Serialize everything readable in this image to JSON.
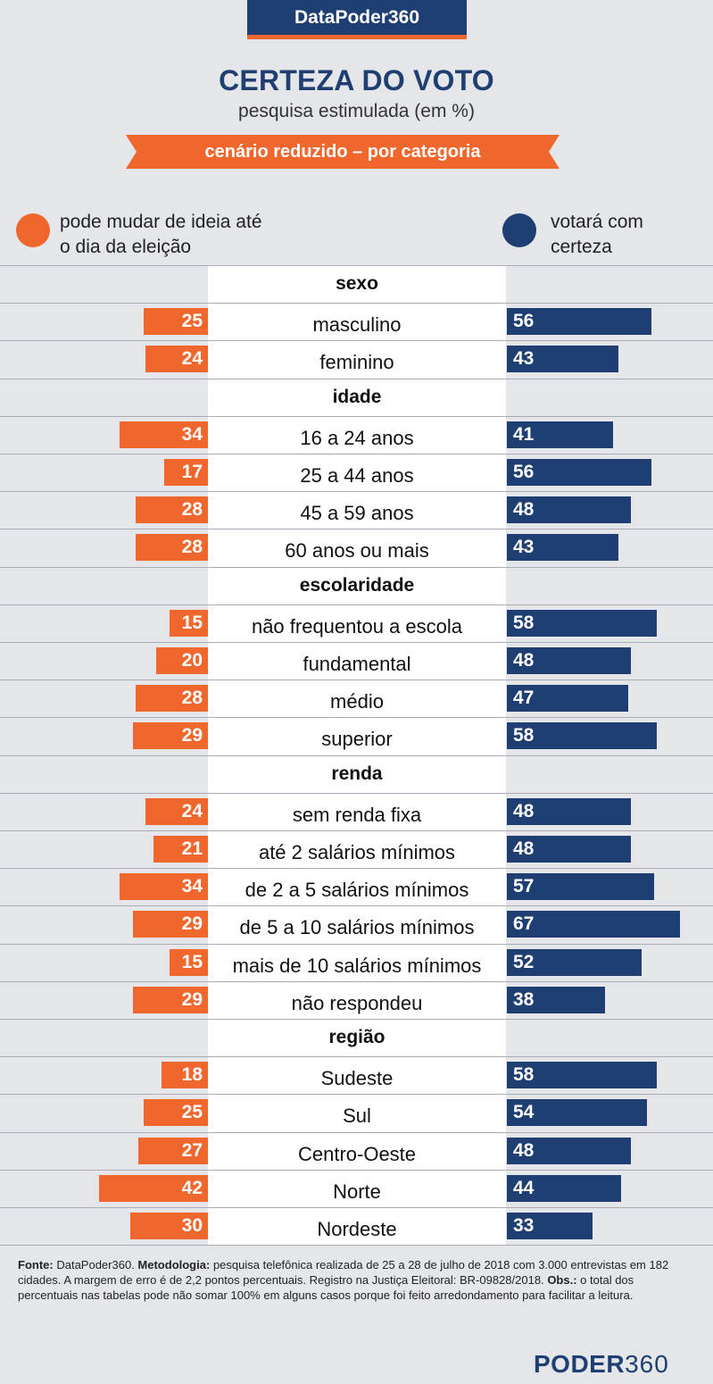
{
  "brand": "DataPoder360",
  "title": "CERTEZA DO VOTO",
  "subtitle": "pesquisa estimulada (em %)",
  "ribbon": "cenário reduzido – por categoria",
  "legend": {
    "left": "pode mudar de ideia até o dia da eleição",
    "right": "votará com certeza",
    "left_color": "#f0672e",
    "right_color": "#1f3f73"
  },
  "chart_data": {
    "type": "bar",
    "series": [
      {
        "name": "pode mudar de ideia até o dia da eleição",
        "color": "#f0672e"
      },
      {
        "name": "votará com certeza",
        "color": "#1f3f73"
      }
    ],
    "groups": [
      {
        "name": "sexo",
        "rows": [
          {
            "label": "masculino",
            "left": 25,
            "right": 56
          },
          {
            "label": "feminino",
            "left": 24,
            "right": 43
          }
        ]
      },
      {
        "name": "idade",
        "rows": [
          {
            "label": "16 a 24 anos",
            "left": 34,
            "right": 41
          },
          {
            "label": "25 a 44 anos",
            "left": 17,
            "right": 56
          },
          {
            "label": "45 a 59 anos",
            "left": 28,
            "right": 48
          },
          {
            "label": "60 anos ou mais",
            "left": 28,
            "right": 43
          }
        ]
      },
      {
        "name": "escolaridade",
        "rows": [
          {
            "label": "não frequentou a escola",
            "left": 15,
            "right": 58
          },
          {
            "label": "fundamental",
            "left": 20,
            "right": 48
          },
          {
            "label": "médio",
            "left": 28,
            "right": 47
          },
          {
            "label": "superior",
            "left": 29,
            "right": 58
          }
        ]
      },
      {
        "name": "renda",
        "rows": [
          {
            "label": "sem renda fixa",
            "left": 24,
            "right": 48
          },
          {
            "label": "até 2 salários mínimos",
            "left": 21,
            "right": 48
          },
          {
            "label": "de 2 a 5 salários mínimos",
            "left": 34,
            "right": 57
          },
          {
            "label": "de 5 a 10 salários mínimos",
            "left": 29,
            "right": 67
          },
          {
            "label": "mais de 10 salários mínimos",
            "left": 15,
            "right": 52
          },
          {
            "label": "não respondeu",
            "left": 29,
            "right": 38
          }
        ]
      },
      {
        "name": "região",
        "rows": [
          {
            "label": "Sudeste",
            "left": 18,
            "right": 58
          },
          {
            "label": "Sul",
            "left": 25,
            "right": 54
          },
          {
            "label": "Centro-Oeste",
            "left": 27,
            "right": 48
          },
          {
            "label": "Norte",
            "left": 42,
            "right": 44
          },
          {
            "label": "Nordeste",
            "left": 30,
            "right": 33
          }
        ]
      }
    ]
  },
  "footnote": {
    "source_label": "Fonte:",
    "source_text": "DataPoder360.",
    "method_label": "Metodologia:",
    "method_text": "pesquisa telefônica realizada de 25 a 28 de julho de 2018 com 3.000 entrevistas em 182 cidades. A margem de erro é de 2,2 pontos percentuais. Registro na Justiça Eleitoral: BR-09828/2018.",
    "obs_label": "Obs.:",
    "obs_text": "o total dos percentuais nas tabelas pode não somar 100% em alguns casos porque foi feito arredondamento para facilitar a leitura."
  },
  "logo": {
    "word": "PODER",
    "number": "360"
  }
}
